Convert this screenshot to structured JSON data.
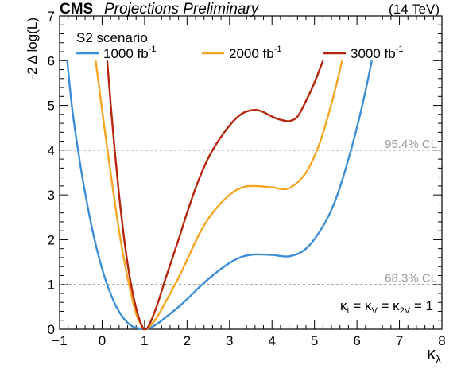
{
  "header": {
    "experiment": "CMS",
    "status": "Projections Preliminary",
    "energy": "(14 TeV)"
  },
  "scenario_label": "S2 scenario",
  "annotation": "κ_t = κ_V = κ_2V = 1",
  "chart_data": {
    "type": "line",
    "xlabel": "κλ",
    "ylabel": "-2 Δ log(L)",
    "xlim": [
      -1,
      8
    ],
    "ylim": [
      0,
      7
    ],
    "xticks": [
      -1,
      0,
      1,
      2,
      3,
      4,
      5,
      6,
      7,
      8
    ],
    "yticks": [
      0,
      1,
      2,
      3,
      4,
      5,
      6,
      7
    ],
    "grid": false,
    "legend_position": "top",
    "reference_lines": [
      {
        "y": 4.0,
        "label": "95.4% CL",
        "color": "#9a9a9a"
      },
      {
        "y": 1.0,
        "label": "68.3% CL",
        "color": "#9a9a9a"
      }
    ],
    "series": [
      {
        "name": "1000 fb-1",
        "color": "#3c8ed6",
        "x": [
          -0.82,
          -0.7,
          -0.5,
          -0.3,
          -0.1,
          0.1,
          0.3,
          0.5,
          0.7,
          0.9,
          1.0,
          1.1,
          1.3,
          1.5,
          1.8,
          2.0,
          2.3,
          2.6,
          3.0,
          3.3,
          3.6,
          4.0,
          4.4,
          4.8,
          5.2,
          5.5,
          5.8,
          6.1,
          6.35
        ],
        "y": [
          6.0,
          4.9,
          3.6,
          2.55,
          1.7,
          1.05,
          0.57,
          0.25,
          0.07,
          0.01,
          0.0,
          0.02,
          0.12,
          0.27,
          0.5,
          0.67,
          0.95,
          1.2,
          1.48,
          1.62,
          1.67,
          1.66,
          1.63,
          1.8,
          2.3,
          2.9,
          3.8,
          4.9,
          6.0
        ]
      },
      {
        "name": "2000 fb-1",
        "color": "#f5a623",
        "x": [
          -0.15,
          0.0,
          0.2,
          0.4,
          0.6,
          0.8,
          0.95,
          1.0,
          1.1,
          1.3,
          1.5,
          1.8,
          2.0,
          2.3,
          2.6,
          3.0,
          3.3,
          3.6,
          4.0,
          4.4,
          4.8,
          5.1,
          5.3,
          5.5,
          5.65
        ],
        "y": [
          6.0,
          4.9,
          3.5,
          2.2,
          1.15,
          0.35,
          0.05,
          0.0,
          0.04,
          0.28,
          0.62,
          1.15,
          1.55,
          2.15,
          2.6,
          3.0,
          3.17,
          3.2,
          3.17,
          3.15,
          3.5,
          4.1,
          4.7,
          5.4,
          6.0
        ]
      },
      {
        "name": "3000 fb-1",
        "color": "#b5260c",
        "x": [
          0.12,
          0.25,
          0.4,
          0.55,
          0.7,
          0.85,
          0.95,
          1.0,
          1.1,
          1.3,
          1.5,
          1.8,
          2.0,
          2.3,
          2.6,
          3.0,
          3.3,
          3.6,
          3.8,
          4.0,
          4.2,
          4.4,
          4.6,
          4.8,
          4.95,
          5.1,
          5.2
        ],
        "y": [
          6.0,
          4.5,
          3.0,
          1.8,
          0.9,
          0.3,
          0.05,
          0.0,
          0.08,
          0.55,
          1.15,
          2.0,
          2.6,
          3.4,
          4.0,
          4.55,
          4.82,
          4.9,
          4.85,
          4.75,
          4.68,
          4.65,
          4.75,
          5.1,
          5.4,
          5.75,
          6.0
        ]
      }
    ]
  }
}
